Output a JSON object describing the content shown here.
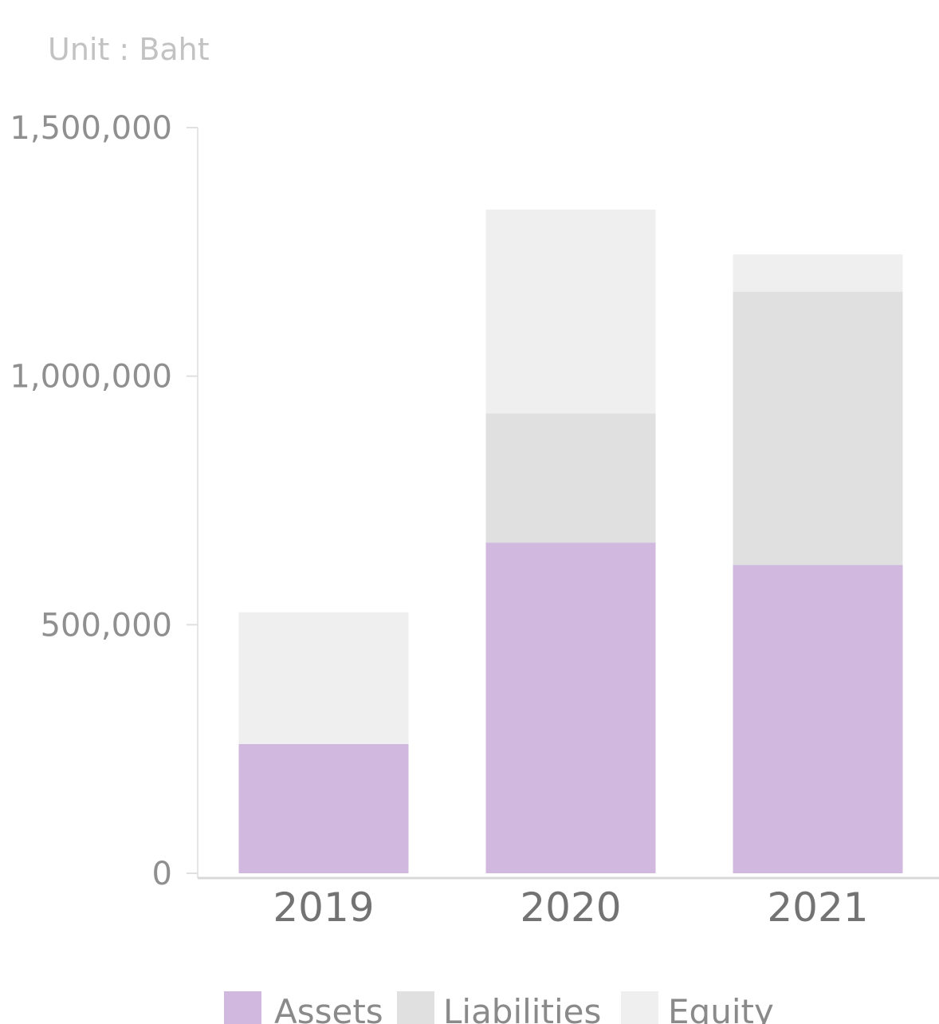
{
  "chart_data": {
    "type": "bar",
    "stacked": true,
    "unit_label": "Unit : Baht",
    "categories": [
      "2019",
      "2020",
      "2021"
    ],
    "series": [
      {
        "name": "Assets",
        "color": "#d1b8de",
        "values": [
          260000,
          665000,
          620000
        ]
      },
      {
        "name": "Liabilities",
        "color": "#e0e0e0",
        "values": [
          0,
          260000,
          550000
        ]
      },
      {
        "name": "Equity",
        "color": "#efefef",
        "values": [
          265000,
          410000,
          75000
        ]
      }
    ],
    "ylim": [
      0,
      1500000
    ],
    "yticks": [
      0,
      500000,
      1000000,
      1500000
    ],
    "ytick_labels": [
      "0",
      "500,000",
      "1,000,000",
      "1,500,000"
    ],
    "legend_position": "bottom",
    "grid": false
  }
}
